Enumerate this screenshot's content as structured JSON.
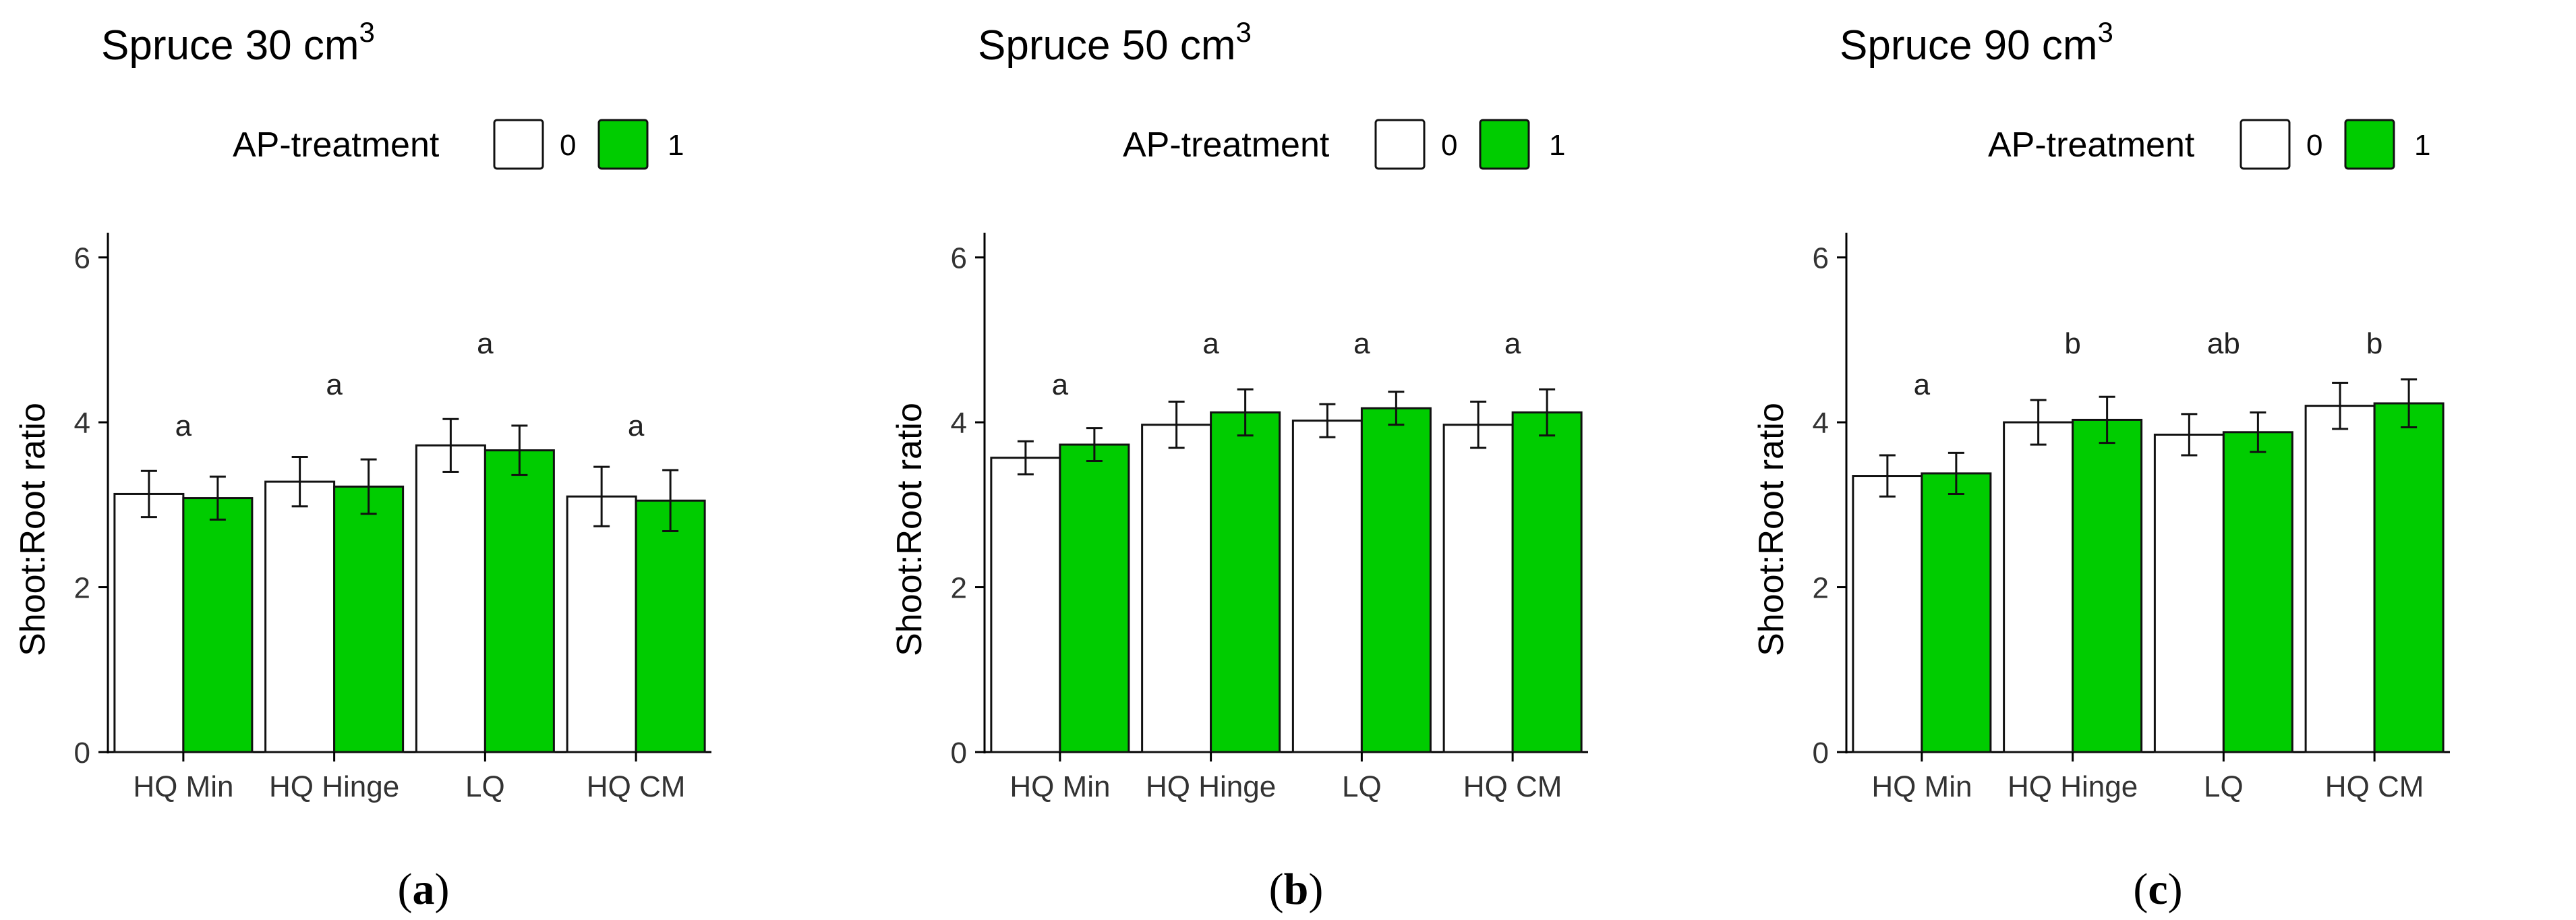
{
  "colors": {
    "ap0": "#ffffff",
    "ap1": "#00cc00",
    "outline": "#111111"
  },
  "legend": {
    "title": "AP-treatment",
    "keys": [
      "0",
      "1"
    ]
  },
  "chart_data": [
    {
      "type": "bar",
      "panel_label": "a",
      "title_text": "Spruce 30 cm",
      "title_sup": "3",
      "xlabel": "",
      "ylabel": "Shoot:Root ratio",
      "ylim": [
        0,
        6.3
      ],
      "yticks": [
        "0",
        "2",
        "4",
        "6"
      ],
      "categories": [
        "HQ Min",
        "HQ Hinge",
        "LQ",
        "HQ CM"
      ],
      "letters": [
        "a",
        "a",
        "a",
        "a"
      ],
      "letter_values": [
        3.95,
        4.45,
        4.95,
        3.95
      ],
      "series": [
        {
          "name": "0",
          "values": [
            3.13,
            3.28,
            3.72,
            3.1
          ],
          "err": [
            0.28,
            0.3,
            0.32,
            0.36
          ]
        },
        {
          "name": "1",
          "values": [
            3.08,
            3.22,
            3.66,
            3.05
          ],
          "err": [
            0.26,
            0.33,
            0.3,
            0.37
          ]
        }
      ]
    },
    {
      "type": "bar",
      "panel_label": "b",
      "title_text": "Spruce 50 cm",
      "title_sup": "3",
      "xlabel": "",
      "ylabel": "Shoot:Root ratio",
      "ylim": [
        0,
        6.3
      ],
      "yticks": [
        "0",
        "2",
        "4",
        "6"
      ],
      "categories": [
        "HQ Min",
        "HQ Hinge",
        "LQ",
        "HQ CM"
      ],
      "letters": [
        "a",
        "a",
        "a",
        "a"
      ],
      "letter_values": [
        4.45,
        4.95,
        4.95,
        4.95
      ],
      "series": [
        {
          "name": "0",
          "values": [
            3.57,
            3.97,
            4.02,
            3.97
          ],
          "err": [
            0.2,
            0.28,
            0.2,
            0.28
          ]
        },
        {
          "name": "1",
          "values": [
            3.73,
            4.12,
            4.17,
            4.12
          ],
          "err": [
            0.2,
            0.28,
            0.2,
            0.28
          ]
        }
      ]
    },
    {
      "type": "bar",
      "panel_label": "c",
      "title_text": "Spruce 90 cm",
      "title_sup": "3",
      "xlabel": "",
      "ylabel": "Shoot:Root ratio",
      "ylim": [
        0,
        6.3
      ],
      "yticks": [
        "0",
        "2",
        "4",
        "6"
      ],
      "categories": [
        "HQ Min",
        "HQ Hinge",
        "LQ",
        "HQ CM"
      ],
      "letters": [
        "a",
        "b",
        "ab",
        "b"
      ],
      "letter_values": [
        4.45,
        4.95,
        4.95,
        4.95
      ],
      "series": [
        {
          "name": "0",
          "values": [
            3.35,
            4.0,
            3.85,
            4.2
          ],
          "err": [
            0.25,
            0.27,
            0.25,
            0.28
          ]
        },
        {
          "name": "1",
          "values": [
            3.38,
            4.03,
            3.88,
            4.23
          ],
          "err": [
            0.25,
            0.28,
            0.24,
            0.29
          ]
        }
      ]
    }
  ]
}
